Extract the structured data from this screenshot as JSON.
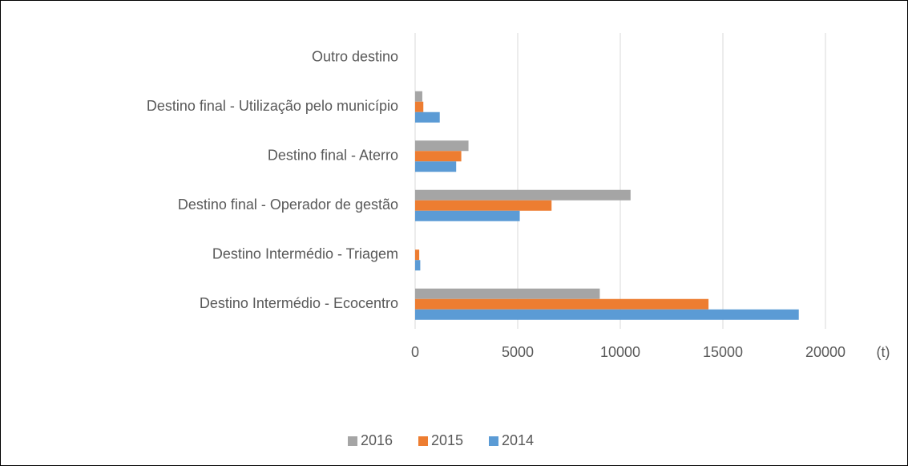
{
  "chart_data": {
    "type": "bar",
    "orientation": "horizontal",
    "categories": [
      "Destino Intermédio - Ecocentro",
      "Destino Intermédio - Triagem",
      "Destino final - Operador de gestão",
      "Destino final - Aterro",
      "Destino final  - Utilização pelo município",
      "Outro destino"
    ],
    "series": [
      {
        "name": "2016",
        "color": "#a5a5a5",
        "values": [
          9000,
          0,
          10500,
          2600,
          350,
          0
        ]
      },
      {
        "name": "2015",
        "color": "#ed7d31",
        "values": [
          14300,
          200,
          6650,
          2250,
          400,
          0
        ]
      },
      {
        "name": "2014",
        "color": "#5b9bd5",
        "values": [
          18700,
          250,
          5100,
          2000,
          1200,
          0
        ]
      }
    ],
    "xlabel": "(t)",
    "xlim": [
      0,
      20000
    ],
    "xticks": [
      0,
      5000,
      10000,
      15000,
      20000
    ],
    "grid": true,
    "legend": "bottom"
  }
}
